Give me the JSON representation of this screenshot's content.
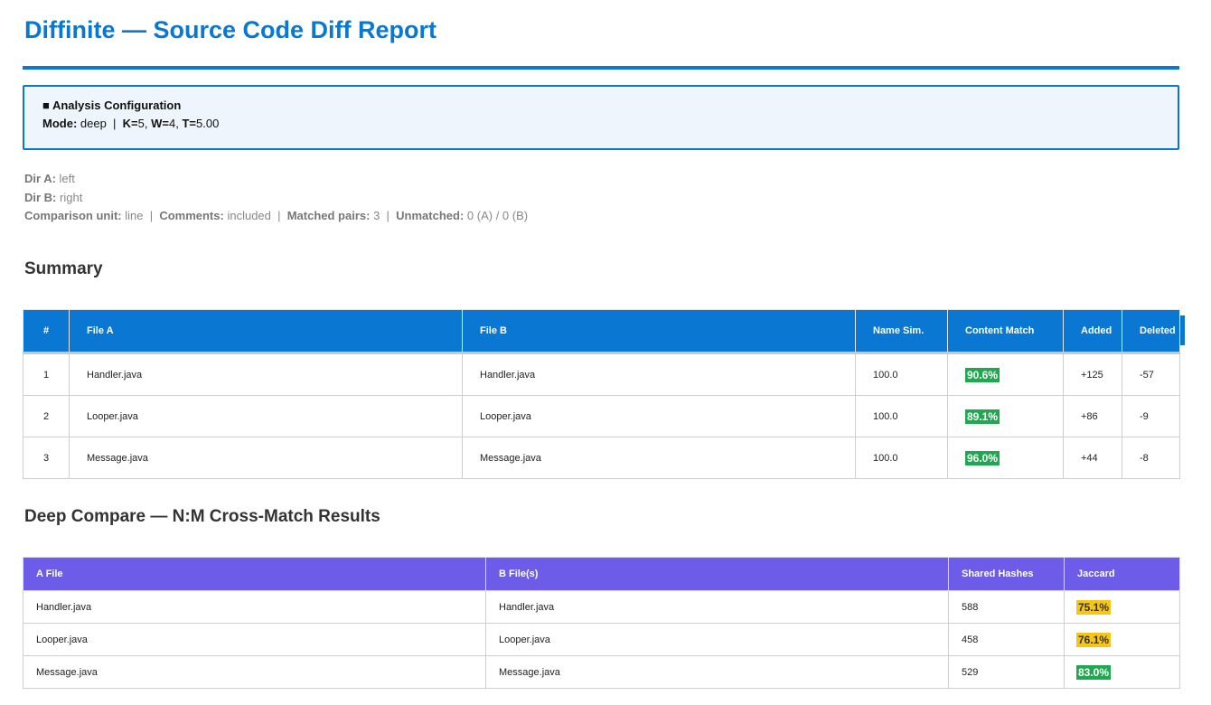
{
  "report": {
    "title": "Diffinite — Source Code Diff Report"
  },
  "config": {
    "heading": "■ Analysis Configuration",
    "mode_label": "Mode:",
    "mode": "deep",
    "k_label": "K=",
    "k": "5",
    "w_label": "W=",
    "w": "4",
    "t_label": "T=",
    "t": "5.00"
  },
  "meta": {
    "dir_a_label": "Dir A:",
    "dir_a": "left",
    "dir_b_label": "Dir B:",
    "dir_b": "right",
    "unit_label": "Comparison unit:",
    "unit": "line",
    "comments_label": "Comments:",
    "comments": "included",
    "matched_label": "Matched pairs:",
    "matched": "3",
    "unmatched_label": "Unmatched:",
    "unmatched": "0 (A) / 0 (B)"
  },
  "summary": {
    "heading": "Summary",
    "columns": [
      "#",
      "File A",
      "File B",
      "Name Sim.",
      "Content Match",
      "Added",
      "Deleted"
    ],
    "rows": [
      {
        "num": "1",
        "file_a": "Handler.java",
        "file_b": "Handler.java",
        "name_sim": "100.0",
        "content_match": "90.6%",
        "added": "+125",
        "deleted": "-57"
      },
      {
        "num": "2",
        "file_a": "Looper.java",
        "file_b": "Looper.java",
        "name_sim": "100.0",
        "content_match": "89.1%",
        "added": "+86",
        "deleted": "-9"
      },
      {
        "num": "3",
        "file_a": "Message.java",
        "file_b": "Message.java",
        "name_sim": "100.0",
        "content_match": "96.0%",
        "added": "+44",
        "deleted": "-8"
      }
    ]
  },
  "deep": {
    "heading": "Deep Compare — N:M Cross-Match Results",
    "columns": [
      "A File",
      "B File(s)",
      "Shared Hashes",
      "Jaccard"
    ],
    "rows": [
      {
        "a_file": "Handler.java",
        "b_files": "Handler.java",
        "shared": "588",
        "jaccard": "75.1%",
        "level": "amber"
      },
      {
        "a_file": "Looper.java",
        "b_files": "Looper.java",
        "shared": "458",
        "jaccard": "76.1%",
        "level": "amber"
      },
      {
        "a_file": "Message.java",
        "b_files": "Message.java",
        "shared": "529",
        "jaccard": "83.0%",
        "level": "green"
      }
    ]
  },
  "colors": {
    "accent": "#0a78d2",
    "deep_header": "#6c5ce7",
    "badge_green": "#1fa84f",
    "badge_amber": "#f5c518",
    "added": "#1e8a1e",
    "deleted": "#d42020"
  }
}
